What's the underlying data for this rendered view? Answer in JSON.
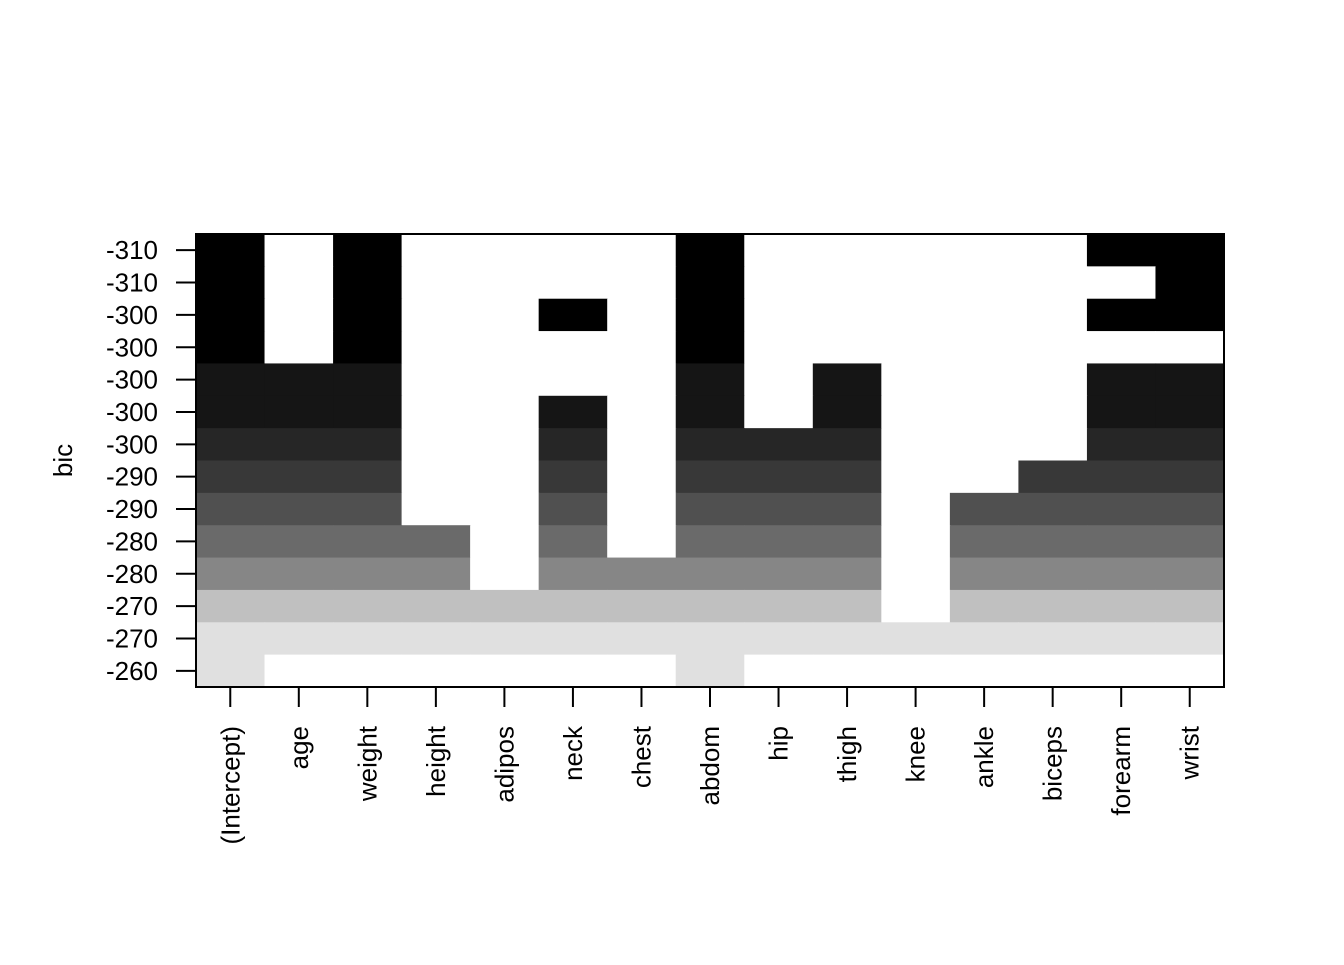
{
  "chart_data": {
    "type": "heatmap",
    "title": "",
    "xlabel": "",
    "ylabel": "bic",
    "categories": [
      "(Intercept)",
      "age",
      "weight",
      "height",
      "adipos",
      "neck",
      "chest",
      "abdom",
      "hip",
      "thigh",
      "knee",
      "ankle",
      "biceps",
      "forearm",
      "wrist"
    ],
    "row_labels": [
      "-310",
      "-310",
      "-300",
      "-300",
      "-300",
      "-300",
      "-300",
      "-290",
      "-290",
      "-280",
      "-280",
      "-270",
      "-270",
      "-260"
    ],
    "row_colors": [
      "#000000",
      "#000000",
      "#000000",
      "#000000",
      "#151515",
      "#151515",
      "#262626",
      "#383838",
      "#505050",
      "#6a6a6a",
      "#868686",
      "#c0c0c0",
      "#e0e0e0",
      "#e0e0e0"
    ],
    "empty_color": "#ffffff",
    "grid": false,
    "legend": "none",
    "included": [
      [
        1,
        0,
        1,
        0,
        0,
        0,
        0,
        1,
        0,
        0,
        0,
        0,
        0,
        1,
        1
      ],
      [
        1,
        0,
        1,
        0,
        0,
        0,
        0,
        1,
        0,
        0,
        0,
        0,
        0,
        0,
        1
      ],
      [
        1,
        0,
        1,
        0,
        0,
        1,
        0,
        1,
        0,
        0,
        0,
        0,
        0,
        1,
        1
      ],
      [
        1,
        0,
        1,
        0,
        0,
        0,
        0,
        1,
        0,
        0,
        0,
        0,
        0,
        0,
        0
      ],
      [
        1,
        1,
        1,
        0,
        0,
        0,
        0,
        1,
        0,
        1,
        0,
        0,
        0,
        1,
        1
      ],
      [
        1,
        1,
        1,
        0,
        0,
        1,
        0,
        1,
        0,
        1,
        0,
        0,
        0,
        1,
        1
      ],
      [
        1,
        1,
        1,
        0,
        0,
        1,
        0,
        1,
        1,
        1,
        0,
        0,
        0,
        1,
        1
      ],
      [
        1,
        1,
        1,
        0,
        0,
        1,
        0,
        1,
        1,
        1,
        0,
        0,
        1,
        1,
        1
      ],
      [
        1,
        1,
        1,
        0,
        0,
        1,
        0,
        1,
        1,
        1,
        0,
        1,
        1,
        1,
        1
      ],
      [
        1,
        1,
        1,
        1,
        0,
        1,
        0,
        1,
        1,
        1,
        0,
        1,
        1,
        1,
        1
      ],
      [
        1,
        1,
        1,
        1,
        0,
        1,
        1,
        1,
        1,
        1,
        0,
        1,
        1,
        1,
        1
      ],
      [
        1,
        1,
        1,
        1,
        1,
        1,
        1,
        1,
        1,
        1,
        0,
        1,
        1,
        1,
        1
      ],
      [
        1,
        1,
        1,
        1,
        1,
        1,
        1,
        1,
        1,
        1,
        1,
        1,
        1,
        1,
        1
      ],
      [
        1,
        0,
        0,
        0,
        0,
        0,
        0,
        1,
        0,
        0,
        0,
        0,
        0,
        0,
        0
      ]
    ]
  }
}
